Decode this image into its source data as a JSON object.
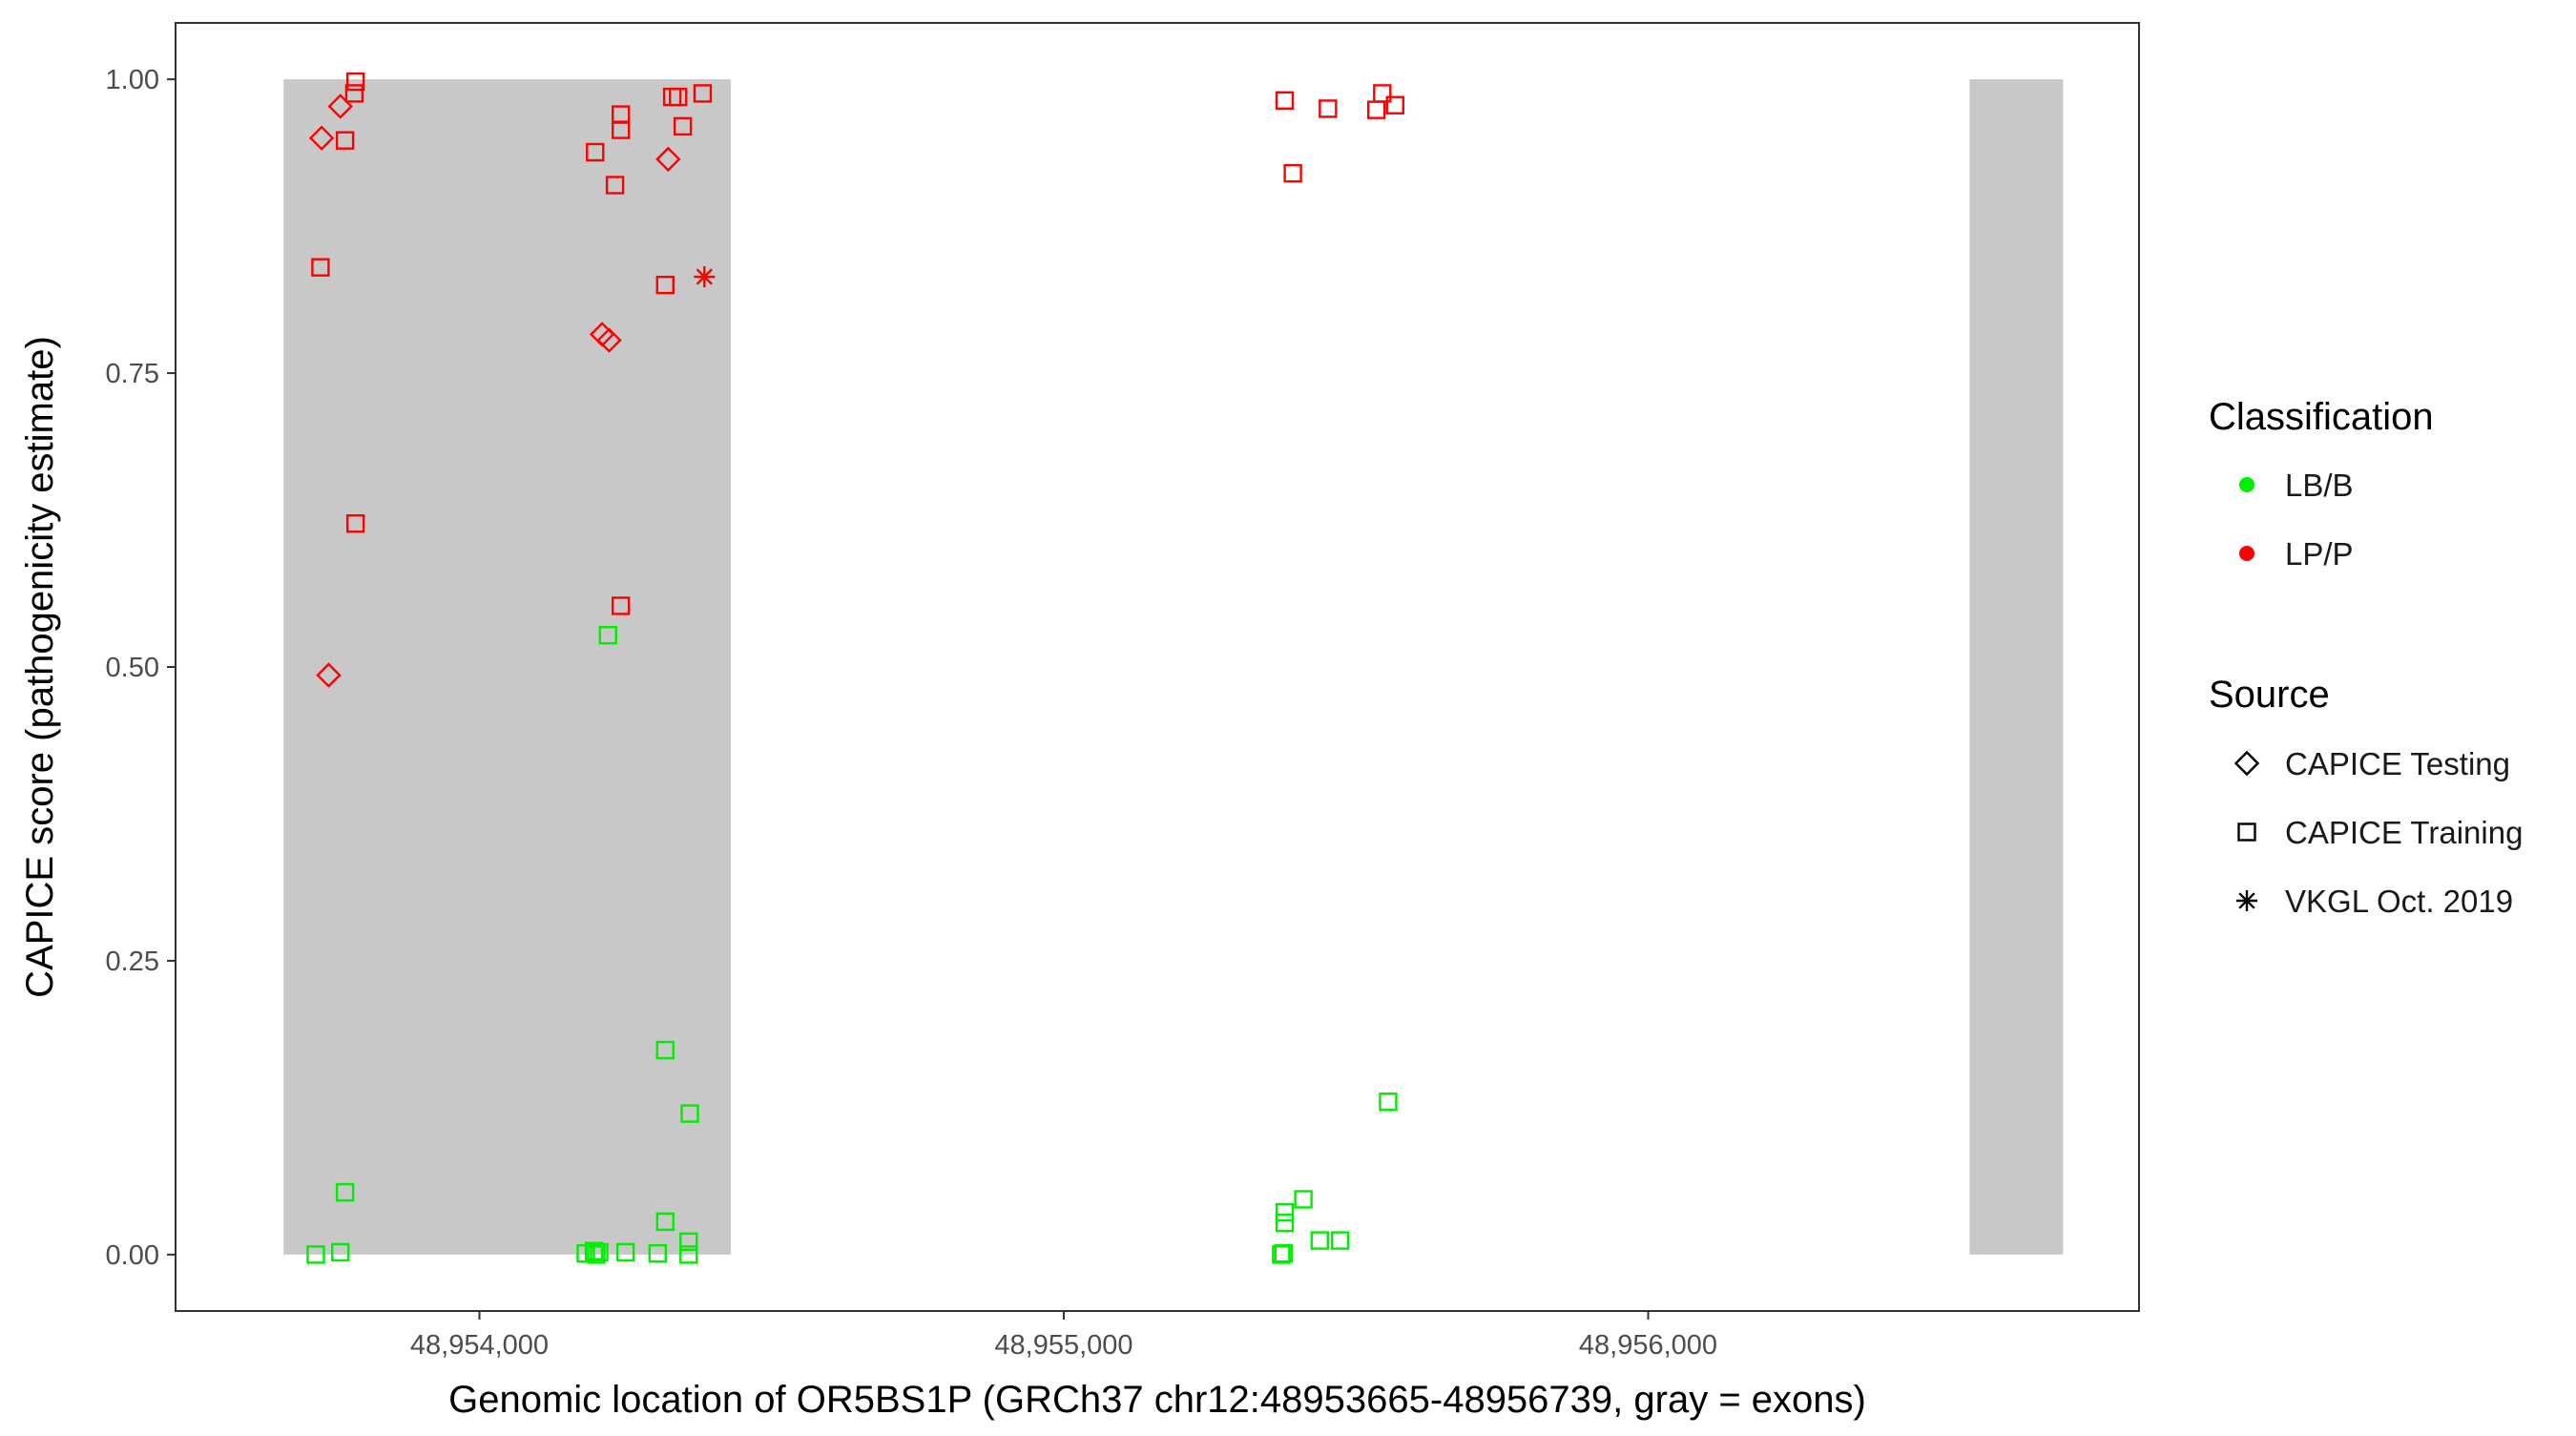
{
  "chart_data": {
    "type": "scatter",
    "title": "",
    "xlabel": "Genomic location of OR5BS1P (GRCh37 chr12:48953665-48956739, gray = exons)",
    "ylabel": "CAPICE score (pathogenicity estimate)",
    "xlim": [
      48953480,
      48956840
    ],
    "ylim": [
      -0.048,
      1.048
    ],
    "x_ticks": [
      48954000,
      48955000,
      48956000
    ],
    "x_tick_labels": [
      "48,954,000",
      "48,955,000",
      "48,956,000"
    ],
    "y_ticks": [
      0,
      0.25,
      0.5,
      0.75,
      1
    ],
    "y_tick_labels": [
      "0.00",
      "0.25",
      "0.50",
      "0.75",
      "1.00"
    ],
    "grid": false,
    "exons": [
      {
        "start": 48953665,
        "end": 48954430
      },
      {
        "start": 48956550,
        "end": 48956710
      }
    ],
    "exon_color": "#c8c8c8",
    "classification_colors": {
      "LB/B": "#00ee00",
      "LP/P": "#ff0000"
    },
    "legend": {
      "position": "right",
      "classification_title": "Classification",
      "classification_items": [
        "LB/B",
        "LP/P"
      ],
      "source_title": "Source",
      "source_items": [
        {
          "label": "CAPICE Testing",
          "shape": "diamond"
        },
        {
          "label": "CAPICE Training",
          "shape": "square"
        },
        {
          "label": "VKGL Oct. 2019",
          "shape": "asterisk"
        }
      ]
    },
    "series": [
      {
        "classification": "LP/P",
        "source": "CAPICE Testing",
        "points": [
          {
            "x": 48953730,
            "y": 0.95
          },
          {
            "x": 48953762,
            "y": 0.977
          },
          {
            "x": 48953742,
            "y": 0.493
          },
          {
            "x": 48954210,
            "y": 0.783
          },
          {
            "x": 48954222,
            "y": 0.778
          },
          {
            "x": 48954323,
            "y": 0.932
          }
        ]
      },
      {
        "classification": "LP/P",
        "source": "CAPICE Training",
        "points": [
          {
            "x": 48953788,
            "y": 0.998
          },
          {
            "x": 48953786,
            "y": 0.988
          },
          {
            "x": 48953770,
            "y": 0.948
          },
          {
            "x": 48953728,
            "y": 0.84
          },
          {
            "x": 48953788,
            "y": 0.622
          },
          {
            "x": 48954198,
            "y": 0.938
          },
          {
            "x": 48954242,
            "y": 0.97
          },
          {
            "x": 48954242,
            "y": 0.957
          },
          {
            "x": 48954232,
            "y": 0.91
          },
          {
            "x": 48954330,
            "y": 0.985
          },
          {
            "x": 48954340,
            "y": 0.985
          },
          {
            "x": 48954348,
            "y": 0.96
          },
          {
            "x": 48954382,
            "y": 0.988
          },
          {
            "x": 48954318,
            "y": 0.825
          },
          {
            "x": 48954242,
            "y": 0.552
          },
          {
            "x": 48955378,
            "y": 0.982
          },
          {
            "x": 48955392,
            "y": 0.92
          },
          {
            "x": 48955452,
            "y": 0.975
          },
          {
            "x": 48955535,
            "y": 0.974
          },
          {
            "x": 48955545,
            "y": 0.988
          },
          {
            "x": 48955567,
            "y": 0.978
          }
        ]
      },
      {
        "classification": "LP/P",
        "source": "VKGL Oct. 2019",
        "points": [
          {
            "x": 48954385,
            "y": 0.832
          }
        ]
      },
      {
        "classification": "LB/B",
        "source": "CAPICE Training",
        "points": [
          {
            "x": 48953770,
            "y": 0.053
          },
          {
            "x": 48953762,
            "y": 0.002
          },
          {
            "x": 48953720,
            "y": 0.0
          },
          {
            "x": 48954220,
            "y": 0.527
          },
          {
            "x": 48954318,
            "y": 0.174
          },
          {
            "x": 48954360,
            "y": 0.12
          },
          {
            "x": 48954318,
            "y": 0.028
          },
          {
            "x": 48954358,
            "y": 0.011
          },
          {
            "x": 48954182,
            "y": 0.001
          },
          {
            "x": 48954196,
            "y": 0.003
          },
          {
            "x": 48954200,
            "y": 0.0
          },
          {
            "x": 48954205,
            "y": 0.002
          },
          {
            "x": 48954250,
            "y": 0.002
          },
          {
            "x": 48954305,
            "y": 0.001
          },
          {
            "x": 48954358,
            "y": 0.0
          },
          {
            "x": 48955372,
            "y": 0.0
          },
          {
            "x": 48955376,
            "y": 0.001
          },
          {
            "x": 48955378,
            "y": 0.036
          },
          {
            "x": 48955378,
            "y": 0.027
          },
          {
            "x": 48955410,
            "y": 0.047
          },
          {
            "x": 48955438,
            "y": 0.012
          },
          {
            "x": 48955473,
            "y": 0.012
          },
          {
            "x": 48955555,
            "y": 0.13
          }
        ]
      }
    ]
  }
}
